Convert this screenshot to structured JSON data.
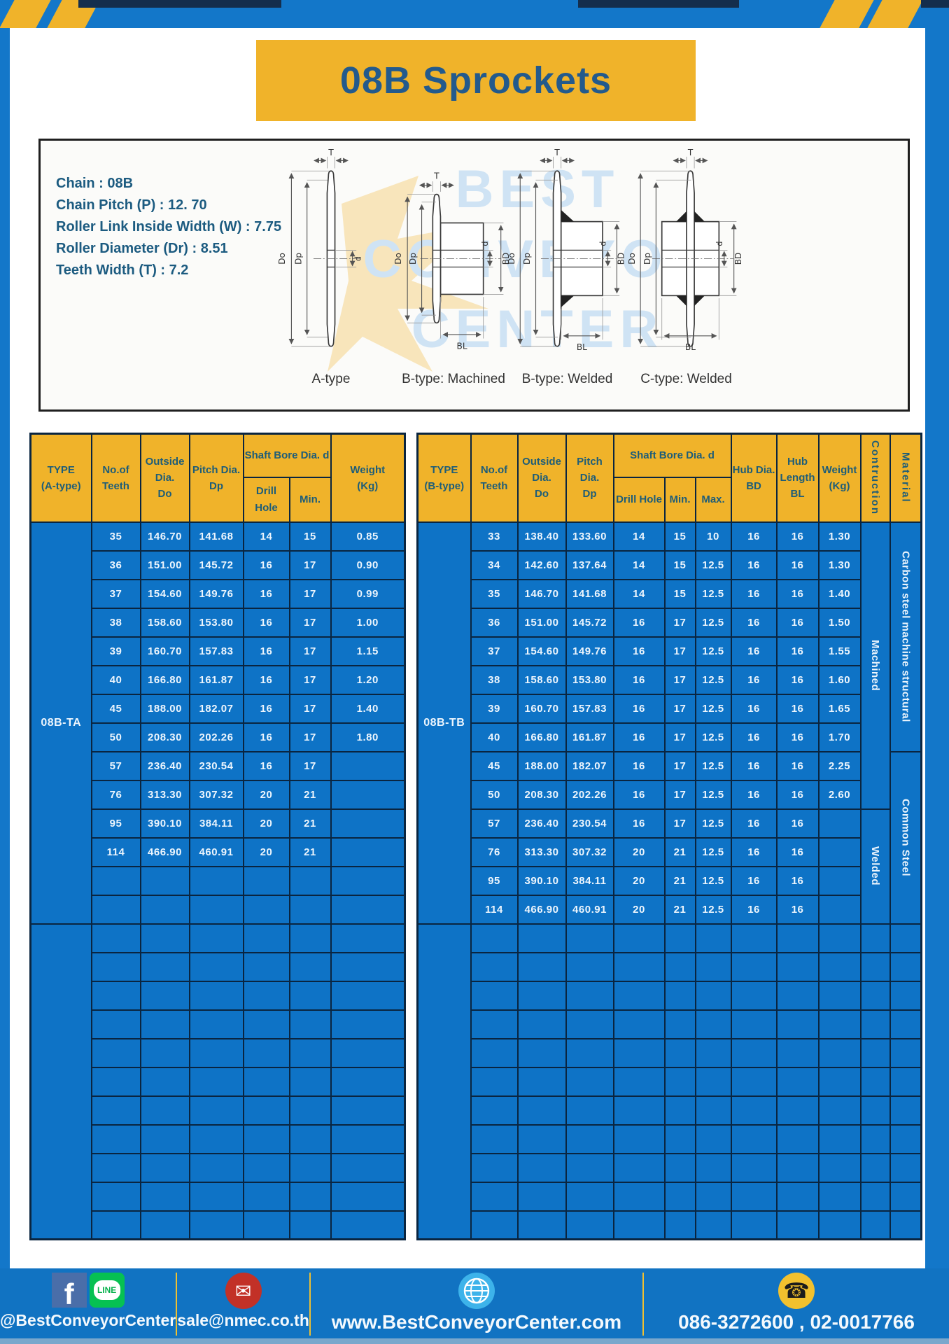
{
  "title": "08B Sprockets",
  "specs": {
    "lines": [
      "Chain : 08B",
      "Chain Pitch (P) : 12. 70",
      "Roller Link Inside Width (W) : 7.75",
      "Roller Diameter (Dr) : 8.51",
      "Teeth Width (T) : 7.2"
    ]
  },
  "diagrams": {
    "captions": [
      "A-type",
      "B-type: Machined",
      "B-type: Welded",
      "C-type: Welded"
    ],
    "watermark_lines": [
      "BEST",
      "CONVEYOR",
      "CENTER"
    ],
    "dims": {
      "t": "T",
      "do": "Do",
      "dp": "Dp",
      "d": "d",
      "bd": "BD",
      "bl": "BL"
    }
  },
  "table_a": {
    "header": {
      "type": [
        "TYPE",
        "(A-type)"
      ],
      "teeth": [
        "No.of",
        "Teeth"
      ],
      "outside_dia": [
        "Outside",
        "Dia.",
        "Do"
      ],
      "pitch_dia": [
        "Pitch Dia.",
        "Dp"
      ],
      "shaft_bore": [
        "Shaft Bore Dia. d"
      ],
      "drill_hole": [
        "Drill Hole"
      ],
      "min": [
        "Min."
      ],
      "weight": [
        "Weight",
        "(Kg)"
      ]
    },
    "type_label": "08B-TA",
    "rows": [
      [
        "35",
        "146.70",
        "141.68",
        "14",
        "15",
        "0.85"
      ],
      [
        "36",
        "151.00",
        "145.72",
        "16",
        "17",
        "0.90"
      ],
      [
        "37",
        "154.60",
        "149.76",
        "16",
        "17",
        "0.99"
      ],
      [
        "38",
        "158.60",
        "153.80",
        "16",
        "17",
        "1.00"
      ],
      [
        "39",
        "160.70",
        "157.83",
        "16",
        "17",
        "1.15"
      ],
      [
        "40",
        "166.80",
        "161.87",
        "16",
        "17",
        "1.20"
      ],
      [
        "45",
        "188.00",
        "182.07",
        "16",
        "17",
        "1.40"
      ],
      [
        "50",
        "208.30",
        "202.26",
        "16",
        "17",
        "1.80"
      ],
      [
        "57",
        "236.40",
        "230.54",
        "16",
        "17",
        ""
      ],
      [
        "76",
        "313.30",
        "307.32",
        "20",
        "21",
        ""
      ],
      [
        "95",
        "390.10",
        "384.11",
        "20",
        "21",
        ""
      ],
      [
        "114",
        "466.90",
        "460.91",
        "20",
        "21",
        ""
      ]
    ],
    "empty_rows_group1": 2,
    "empty_rows_group2": 11
  },
  "table_b": {
    "header": {
      "type": [
        "TYPE",
        "(B-type)"
      ],
      "teeth": [
        "No.of",
        "Teeth"
      ],
      "outside_dia": [
        "Outside",
        "Dia.",
        "Do"
      ],
      "pitch_dia": [
        "Pitch Dia.",
        "Dp"
      ],
      "shaft_bore": [
        "Shaft Bore Dia. d"
      ],
      "drill_hole": [
        "Drill Hole"
      ],
      "min": [
        "Min."
      ],
      "max": [
        "Max."
      ],
      "hub_dia": [
        "Hub Dia.",
        "BD"
      ],
      "hub_length": [
        "Hub",
        "Length",
        "BL"
      ],
      "weight": [
        "Weight",
        "(Kg)"
      ],
      "construction": [
        "Contruction"
      ],
      "material": [
        "Material"
      ]
    },
    "type_label": "08B-TB",
    "rows": [
      [
        "33",
        "138.40",
        "133.60",
        "14",
        "15",
        "10",
        "16",
        "16",
        "1.30"
      ],
      [
        "34",
        "142.60",
        "137.64",
        "14",
        "15",
        "12.5",
        "16",
        "16",
        "1.30"
      ],
      [
        "35",
        "146.70",
        "141.68",
        "14",
        "15",
        "12.5",
        "16",
        "16",
        "1.40"
      ],
      [
        "36",
        "151.00",
        "145.72",
        "16",
        "17",
        "12.5",
        "16",
        "16",
        "1.50"
      ],
      [
        "37",
        "154.60",
        "149.76",
        "16",
        "17",
        "12.5",
        "16",
        "16",
        "1.55"
      ],
      [
        "38",
        "158.60",
        "153.80",
        "16",
        "17",
        "12.5",
        "16",
        "16",
        "1.60"
      ],
      [
        "39",
        "160.70",
        "157.83",
        "16",
        "17",
        "12.5",
        "16",
        "16",
        "1.65"
      ],
      [
        "40",
        "166.80",
        "161.87",
        "16",
        "17",
        "12.5",
        "16",
        "16",
        "1.70"
      ],
      [
        "45",
        "188.00",
        "182.07",
        "16",
        "17",
        "12.5",
        "16",
        "16",
        "2.25"
      ],
      [
        "50",
        "208.30",
        "202.26",
        "16",
        "17",
        "12.5",
        "16",
        "16",
        "2.60"
      ],
      [
        "57",
        "236.40",
        "230.54",
        "16",
        "17",
        "12.5",
        "16",
        "16",
        ""
      ],
      [
        "76",
        "313.30",
        "307.32",
        "20",
        "21",
        "12.5",
        "16",
        "16",
        ""
      ],
      [
        "95",
        "390.10",
        "384.11",
        "20",
        "21",
        "12.5",
        "16",
        "16",
        ""
      ],
      [
        "114",
        "466.90",
        "460.91",
        "20",
        "21",
        "12.5",
        "16",
        "16",
        ""
      ]
    ],
    "construction_groups": [
      {
        "label": "Machined",
        "span": 10
      },
      {
        "label": "Welded",
        "span": 4
      }
    ],
    "material_groups": [
      {
        "label": "Carbon steel machine structural",
        "span": 8
      },
      {
        "label": "Common Steel",
        "span": 6
      }
    ],
    "empty_rows_group1": 0,
    "empty_rows_group2": 11
  },
  "footer": {
    "social_handle": "@BestConveyorCenter",
    "email": "sale@nmec.co.th",
    "website": "www.BestConveyorCenter.com",
    "phones": "086-3272600 , 02-0017766",
    "icons": {
      "facebook": "f",
      "line": "LINE",
      "mail": "✉",
      "phone": "☎"
    }
  },
  "colors": {
    "frame_blue": "#1377c9",
    "accent_yellow": "#f0b32a",
    "table_blue": "#0e73c6",
    "border_navy": "#0a2540",
    "footer_blue": "#1173c2",
    "text_teal": "#1c5b80"
  }
}
